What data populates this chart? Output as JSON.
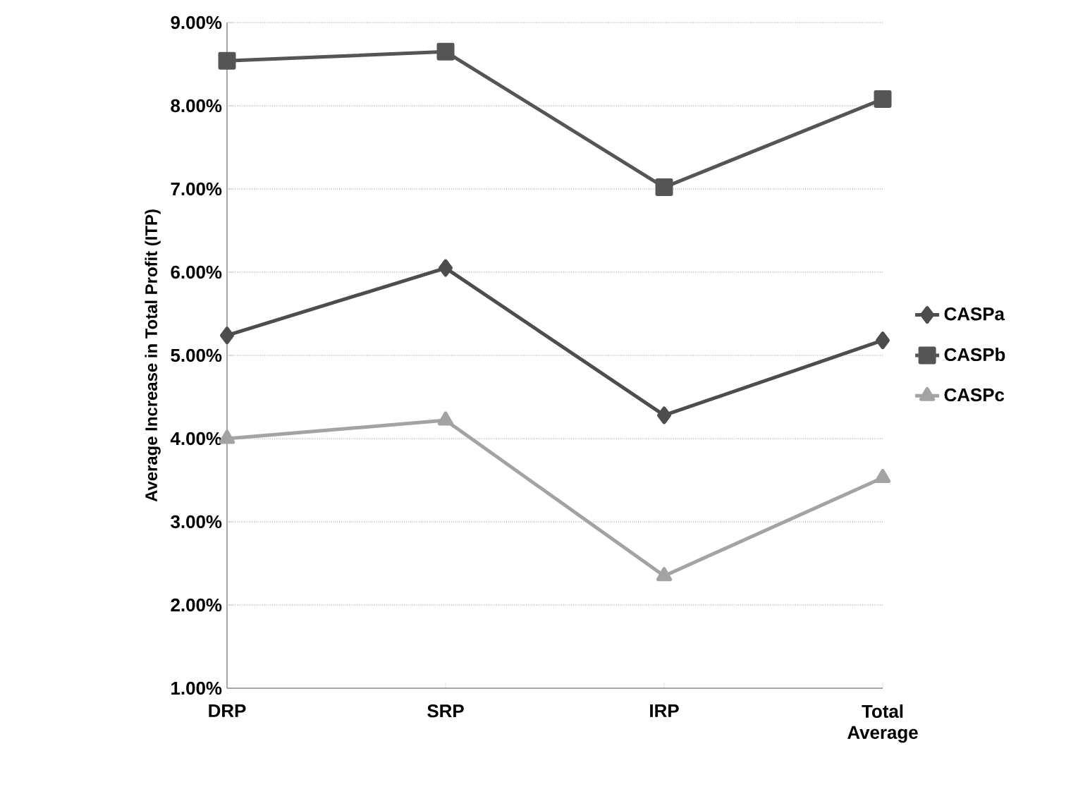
{
  "chart_data": {
    "type": "line",
    "ylabel": "Average Increase in Total Profit (ITP)",
    "categories": [
      "DRP",
      "SRP",
      "IRP",
      "Total Average"
    ],
    "series": [
      {
        "name": "CASPa",
        "color": "#4d4d4d",
        "marker": "diamond",
        "values": [
          5.24,
          6.05,
          4.28,
          5.18
        ]
      },
      {
        "name": "CASPb",
        "color": "#555555",
        "marker": "square",
        "values": [
          8.54,
          8.65,
          7.02,
          8.08
        ]
      },
      {
        "name": "CASPc",
        "color": "#a3a3a3",
        "marker": "triangle",
        "values": [
          4.0,
          4.22,
          2.35,
          3.53
        ]
      }
    ],
    "ylim": [
      1,
      9
    ],
    "yticks": [
      {
        "value": 1,
        "label": "1.00%"
      },
      {
        "value": 2,
        "label": "2.00%"
      },
      {
        "value": 3,
        "label": "3.00%"
      },
      {
        "value": 4,
        "label": "4.00%"
      },
      {
        "value": 5,
        "label": "5.00%"
      },
      {
        "value": 6,
        "label": "6.00%"
      },
      {
        "value": 7,
        "label": "7.00%"
      },
      {
        "value": 8,
        "label": "8.00%"
      },
      {
        "value": 9,
        "label": "9.00%"
      }
    ],
    "grid": "y",
    "legend": "right",
    "line_style": "solid"
  }
}
